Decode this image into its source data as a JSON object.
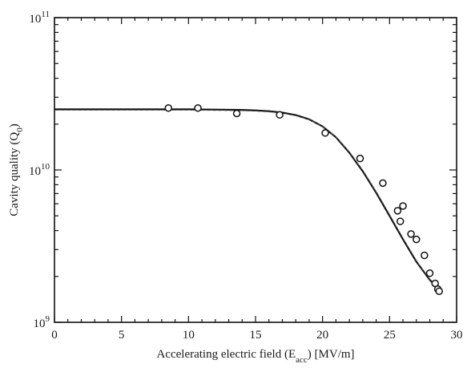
{
  "chart_data": {
    "type": "scatter",
    "title": "",
    "xlabel": "Accelerating electric field (E_acc) [MV/m]",
    "xlabel_parts": {
      "main": "Accelerating electric field (E",
      "sub": "acc",
      "tail": ") [MV/m]"
    },
    "ylabel": "Cavity quality (Q_0)",
    "ylabel_parts": {
      "main": "Cavity quality (Q",
      "sub": "0",
      "tail": ")"
    },
    "xlim": [
      0,
      30
    ],
    "ylim": [
      1000000000.0,
      100000000000.0
    ],
    "yscale": "log",
    "grid": false,
    "x_ticks": [
      "0",
      "5",
      "10",
      "15",
      "20",
      "25",
      "30"
    ],
    "y_ticks": [
      {
        "value": 1000000000.0,
        "base": "10",
        "exp": "9"
      },
      {
        "value": 10000000000.0,
        "base": "10",
        "exp": "10"
      },
      {
        "value": 100000000000.0,
        "base": "10",
        "exp": "11"
      }
    ],
    "series": [
      {
        "kind": "fit-curve",
        "x": [
          0,
          5,
          10,
          12,
          14,
          15,
          16,
          17,
          18,
          19,
          20,
          21,
          22,
          23,
          24,
          25,
          26,
          27,
          28,
          28.8
        ],
        "y": [
          25000000000.0,
          25000000000.0,
          25000000000.0,
          24900000000.0,
          24800000000.0,
          24600000000.0,
          24300000000.0,
          23800000000.0,
          22900000000.0,
          21500000000.0,
          19300000000.0,
          16400000000.0,
          13000000000.0,
          9800000000.0,
          7100000000.0,
          5000000000.0,
          3500000000.0,
          2500000000.0,
          1900000000.0,
          1600000000.0
        ]
      },
      {
        "kind": "measured",
        "x": [
          8.5,
          10.7,
          13.6,
          16.8,
          20.2,
          22.8,
          24.5,
          25.6,
          25.8,
          26.0,
          26.6,
          27.0,
          27.6,
          28.0,
          28.4,
          28.6,
          28.7
        ],
        "y": [
          25500000000.0,
          25500000000.0,
          23500000000.0,
          23000000000.0,
          17500000000.0,
          11900000000.0,
          8200000000.0,
          5400000000.0,
          4600000000.0,
          5800000000.0,
          3800000000.0,
          3500000000.0,
          2750000000.0,
          2100000000.0,
          1800000000.0,
          1650000000.0,
          1600000000.0
        ]
      }
    ]
  }
}
